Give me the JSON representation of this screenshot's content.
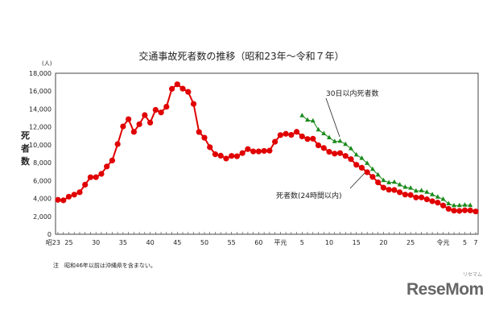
{
  "chart_data": {
    "type": "line",
    "title": "交通事故死者数の推移（昭和23年～令和７年）",
    "ylabel": "死者数",
    "yunit": "(人)",
    "ylim": [
      0,
      18000
    ],
    "yticks": [
      "0",
      "2,000",
      "4,000",
      "6,000",
      "8,000",
      "10,000",
      "12,000",
      "14,000",
      "16,000",
      "18,000"
    ],
    "xlim": [
      1948,
      2025
    ],
    "xticks": [
      {
        "year": 1948,
        "label": "昭23"
      },
      {
        "year": 1950,
        "label": "25"
      },
      {
        "year": 1955,
        "label": "30"
      },
      {
        "year": 1960,
        "label": "35"
      },
      {
        "year": 1965,
        "label": "40"
      },
      {
        "year": 1970,
        "label": "45"
      },
      {
        "year": 1975,
        "label": "50"
      },
      {
        "year": 1980,
        "label": "55"
      },
      {
        "year": 1985,
        "label": "60"
      },
      {
        "year": 1989,
        "label": "平元"
      },
      {
        "year": 1993,
        "label": "5"
      },
      {
        "year": 1998,
        "label": "10"
      },
      {
        "year": 2003,
        "label": "15"
      },
      {
        "year": 2008,
        "label": "20"
      },
      {
        "year": 2013,
        "label": "25"
      },
      {
        "year": 2019,
        "label": "令元"
      },
      {
        "year": 2023,
        "label": "5"
      },
      {
        "year": 2025,
        "label": "7"
      }
    ],
    "grid": false,
    "series": [
      {
        "name": "死者数(24時間以内)",
        "color": "#e00000",
        "marker": "circle",
        "x_start": 1948,
        "values": [
          3848,
          3790,
          4202,
          4429,
          4696,
          5544,
          6374,
          6379,
          6751,
          7575,
          8248,
          10079,
          12055,
          12865,
          11445,
          12301,
          13318,
          12484,
          13904,
          13618,
          14256,
          16257,
          16765,
          16278,
          15918,
          14574,
          11432,
          10792,
          9734,
          8945,
          8783,
          8466,
          8760,
          8719,
          9073,
          9520,
          9262,
          9261,
          9317,
          9347,
          10344,
          11086,
          11227,
          11109,
          11452,
          10942,
          10649,
          10684,
          9943,
          9642,
          9214,
          9012,
          9073,
          8757,
          8396,
          7768,
          7436,
          6937,
          6415,
          5796,
          5209,
          4979,
          4948,
          4691,
          4438,
          4388,
          4113,
          4117,
          3904,
          3694,
          3532,
          3215,
          2839,
          2636,
          2610,
          2678,
          2663,
          2547
        ]
      },
      {
        "name": "30日以内死者数",
        "color": "#1a8a1a",
        "marker": "triangle",
        "x_start": 1993,
        "values": [
          13269,
          12768,
          12670,
          11674,
          11254,
          10805,
          10372,
          10403,
          10060,
          9575,
          8877,
          8492,
          7931,
          7272,
          6639,
          6023,
          5772,
          5828,
          5535,
          5261,
          5165,
          4838,
          4885,
          4698,
          4431,
          4166,
          3920,
          3416,
          3205,
          3216,
          3263,
          3228
        ]
      }
    ]
  },
  "note": "注　昭和46年以前は沖縄県を含まない。",
  "logo": "ReseMom",
  "logo_sub": "リセマム"
}
